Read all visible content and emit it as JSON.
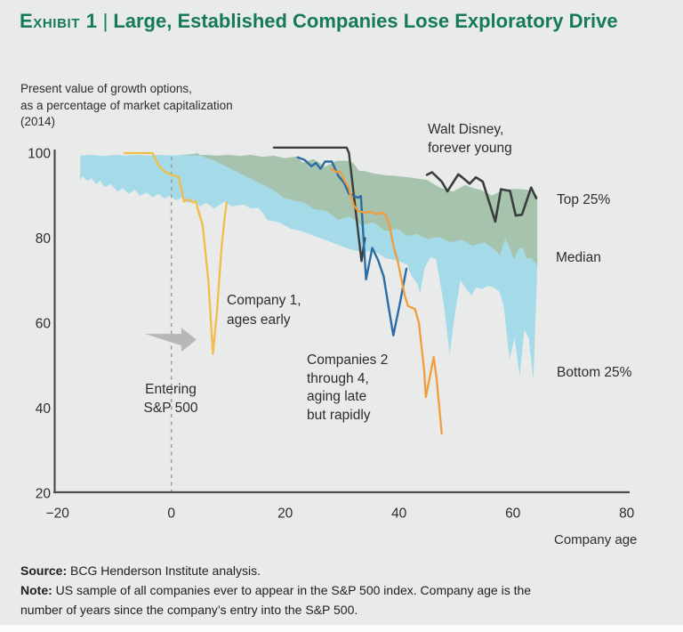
{
  "header": {
    "exhibit_label": "Exhibit 1",
    "separator": "|",
    "title": "Large, Established Companies Lose Exploratory Drive",
    "subtitle_lines": [
      "Present value of growth options,",
      "as a percentage of market capitalization",
      "(2014)"
    ]
  },
  "annotations": {
    "walt_disney_lines": [
      "Walt Disney,",
      "forever young"
    ],
    "company1_lines": [
      "Company 1,",
      "ages early"
    ],
    "companies24_lines": [
      "Companies 2",
      "through 4,",
      "aging late",
      "but rapidly"
    ],
    "entering_lines": [
      "Entering",
      "S&P 500"
    ]
  },
  "band_labels": {
    "top25": "Top 25%",
    "median": "Median",
    "bottom25": "Bottom 25%"
  },
  "axis": {
    "x_title": "Company age"
  },
  "footer": {
    "source_label": "Source:",
    "source_text": "BCG Henderson Institute analysis.",
    "note_label": "Note:",
    "note_lines": [
      "US sample of all companies ever to appear in the S&P 500 index. Company age is the",
      "number of years since the company’s entry into the S&P 500."
    ]
  },
  "colors": {
    "title_green": "#15795c",
    "background": "#e9eaea",
    "axis": "#4c4e4f",
    "dashed_entry_line": "#9aa0a2",
    "arrow_gray": "#b5b7b8",
    "text_dark": "#2b2d2e"
  },
  "chart_data": {
    "type": "area",
    "title": "Present value of growth options, as a percentage of market capitalization (2014)",
    "xlabel": "Company age",
    "ylabel": "",
    "x_range": [
      -20,
      80
    ],
    "y_range": [
      20,
      100
    ],
    "grid": false,
    "x_ticks": [
      "−20",
      "0",
      "20",
      "40",
      "60",
      "80"
    ],
    "x_tick_values": [
      -20,
      0,
      20,
      40,
      60,
      80
    ],
    "y_ticks": [
      "20",
      "40",
      "60",
      "80",
      "100"
    ],
    "y_tick_values": [
      20,
      40,
      60,
      80,
      100
    ],
    "entry_line_x": 0,
    "arrow": {
      "x_tail": -4.6,
      "x_tip": 4.4,
      "y": 56.1,
      "color": "#b5b7b8"
    },
    "bands": {
      "upper_fill": "#a6c3ae",
      "lower_fill": "#a5dbe8",
      "top25": [
        [
          -16,
          99.4
        ],
        [
          -14,
          99.6
        ],
        [
          -12,
          99.3
        ],
        [
          -10,
          99.6
        ],
        [
          -8,
          99.4
        ],
        [
          -6,
          99.6
        ],
        [
          -4,
          99.4
        ],
        [
          -2,
          99.6
        ],
        [
          0,
          99.4
        ],
        [
          2,
          99.6
        ],
        [
          4,
          99.4
        ],
        [
          6,
          99.6
        ],
        [
          8,
          99.4
        ],
        [
          10,
          99.6
        ],
        [
          12,
          99.3
        ],
        [
          14,
          99.6
        ],
        [
          16,
          99.1
        ],
        [
          18,
          99.4
        ],
        [
          20,
          98.8
        ],
        [
          22,
          99.2
        ],
        [
          23,
          97.8
        ],
        [
          25,
          98.6
        ],
        [
          27,
          96.8
        ],
        [
          29,
          98.2
        ],
        [
          31,
          98.2
        ],
        [
          32,
          97.6
        ],
        [
          33,
          95.8
        ],
        [
          34,
          95.8
        ],
        [
          35.5,
          95.2
        ],
        [
          37.4,
          94.8
        ],
        [
          39.7,
          94.6
        ],
        [
          42.3,
          94.2
        ],
        [
          44.9,
          93.7
        ],
        [
          46.9,
          92.1
        ],
        [
          48.5,
          91.2
        ],
        [
          49.6,
          91
        ],
        [
          51.6,
          92.5
        ],
        [
          53,
          91.8
        ],
        [
          54.3,
          91.4
        ],
        [
          56.3,
          90
        ],
        [
          58.4,
          91.4
        ],
        [
          60.5,
          91.6
        ],
        [
          62.6,
          91.4
        ],
        [
          63.7,
          90.6
        ],
        [
          64.3,
          90
        ]
      ],
      "median": [
        [
          -16,
          99.4
        ],
        [
          -14,
          99.6
        ],
        [
          -12,
          99.3
        ],
        [
          -10,
          99.6
        ],
        [
          -8,
          99.4
        ],
        [
          -6,
          99.6
        ],
        [
          -4,
          99.4
        ],
        [
          -2,
          99.6
        ],
        [
          0,
          99.4
        ],
        [
          2,
          99.6
        ],
        [
          4,
          99.8
        ],
        [
          4.5,
          100
        ],
        [
          6,
          98.9
        ],
        [
          7.4,
          98.3
        ],
        [
          8.7,
          97.4
        ],
        [
          10,
          96.6
        ],
        [
          11.3,
          95.7
        ],
        [
          12.6,
          94.8
        ],
        [
          14,
          93.9
        ],
        [
          15.2,
          93.1
        ],
        [
          16.6,
          92.2
        ],
        [
          18,
          91.2
        ],
        [
          19.9,
          89.4
        ],
        [
          21.5,
          88.8
        ],
        [
          23,
          88.5
        ],
        [
          25.1,
          86.8
        ],
        [
          27.2,
          86.4
        ],
        [
          29.3,
          84.3
        ],
        [
          31.3,
          85.1
        ],
        [
          33.5,
          83
        ],
        [
          35.5,
          83.7
        ],
        [
          37.6,
          81.6
        ],
        [
          39.7,
          82.2
        ],
        [
          41.4,
          80.5
        ],
        [
          43,
          81
        ],
        [
          45,
          79.8
        ],
        [
          47,
          80.3
        ],
        [
          49,
          79
        ],
        [
          51,
          79.6
        ],
        [
          53,
          78.2
        ],
        [
          55,
          79
        ],
        [
          57,
          77
        ],
        [
          57.7,
          76
        ],
        [
          58.7,
          79.9
        ],
        [
          59.5,
          77.5
        ],
        [
          60.2,
          74.9
        ],
        [
          61,
          77.5
        ],
        [
          61.7,
          77.8
        ],
        [
          62.4,
          75.2
        ],
        [
          63.3,
          75.3
        ],
        [
          64.3,
          73.5
        ]
      ],
      "bottom25": [
        [
          -16,
          93.5
        ],
        [
          -15.6,
          94.6
        ],
        [
          -14.8,
          93.5
        ],
        [
          -14,
          94.1
        ],
        [
          -13.2,
          92.7
        ],
        [
          -12.5,
          93.5
        ],
        [
          -11.7,
          92
        ],
        [
          -10.6,
          92.7
        ],
        [
          -9.5,
          91
        ],
        [
          -8.5,
          91.7
        ],
        [
          -7.5,
          90.4
        ],
        [
          -6.4,
          91.4
        ],
        [
          -5.5,
          90
        ],
        [
          -4.3,
          90.7
        ],
        [
          -3.3,
          89.6
        ],
        [
          -2.3,
          90.4
        ],
        [
          -1.2,
          89.3
        ],
        [
          -0.2,
          90
        ],
        [
          0.8,
          88.9
        ],
        [
          1.9,
          89.6
        ],
        [
          2.9,
          88.3
        ],
        [
          3.9,
          88.9
        ],
        [
          5,
          87.5
        ],
        [
          6.1,
          88.3
        ],
        [
          7.5,
          87
        ],
        [
          9.4,
          88.6
        ],
        [
          10.5,
          87.5
        ],
        [
          12.6,
          87.9
        ],
        [
          14,
          87
        ],
        [
          15.2,
          87.2
        ],
        [
          16,
          86
        ],
        [
          16.8,
          84.3
        ],
        [
          18.9,
          83.7
        ],
        [
          21,
          82.2
        ],
        [
          23,
          81.6
        ],
        [
          25.1,
          80.5
        ],
        [
          27.2,
          79.5
        ],
        [
          29.3,
          78.4
        ],
        [
          31.3,
          77.4
        ],
        [
          33.5,
          76.7
        ],
        [
          35.5,
          77
        ],
        [
          37.6,
          75.3
        ],
        [
          39.7,
          74.7
        ],
        [
          41.4,
          73.8
        ],
        [
          42.2,
          71.1
        ],
        [
          43.3,
          69.1
        ],
        [
          43.7,
          67
        ],
        [
          44.5,
          73
        ],
        [
          45.5,
          75.5
        ],
        [
          46.5,
          75
        ],
        [
          47.8,
          65
        ],
        [
          48.9,
          52.7
        ],
        [
          49.8,
          62
        ],
        [
          50.8,
          70.1
        ],
        [
          51.8,
          68
        ],
        [
          52.7,
          66.6
        ],
        [
          53.6,
          68.4
        ],
        [
          54.6,
          68
        ],
        [
          55.6,
          68.8
        ],
        [
          56.6,
          68.4
        ],
        [
          57.6,
          67.5
        ],
        [
          58.4,
          64
        ],
        [
          59.4,
          51.5
        ],
        [
          60.3,
          56.5
        ],
        [
          61.2,
          47.5
        ],
        [
          62,
          58.5
        ],
        [
          62.8,
          56.5
        ],
        [
          63.6,
          46.5
        ]
      ]
    },
    "lines": [
      {
        "id": "company-4",
        "name": "Company 4 (ages late but rapidly)",
        "color": "#3b3c3c",
        "width": 2.4,
        "points": [
          [
            18,
            101.3
          ],
          [
            30.8,
            101.3
          ],
          [
            31.2,
            100
          ],
          [
            33.4,
            74.6
          ],
          [
            34,
            80
          ]
        ]
      },
      {
        "id": "company-2",
        "name": "Company 2 (ages late but rapidly)",
        "color": "#2a6da6",
        "width": 2.4,
        "points": [
          [
            22.2,
            99
          ],
          [
            23.4,
            98.4
          ],
          [
            24.6,
            96.9
          ],
          [
            25.4,
            97.7
          ],
          [
            26.2,
            96.3
          ],
          [
            27,
            98
          ],
          [
            28.2,
            98
          ],
          [
            29.3,
            94.7
          ],
          [
            30.3,
            93.1
          ],
          [
            31.2,
            90.4
          ],
          [
            32.8,
            89.5
          ],
          [
            33.3,
            89.9
          ],
          [
            34.2,
            70.3
          ],
          [
            35.3,
            77.7
          ],
          [
            36.3,
            74.9
          ],
          [
            37.3,
            71
          ],
          [
            38.2,
            63.5
          ],
          [
            39,
            57.1
          ],
          [
            40.2,
            65
          ],
          [
            41.3,
            72.8
          ]
        ]
      },
      {
        "id": "company-3",
        "name": "Company 3 (ages late but rapidly)",
        "color": "#f09d3d",
        "width": 2.3,
        "points": [
          [
            28,
            96.4
          ],
          [
            29,
            95.5
          ],
          [
            29.6,
            95.7
          ],
          [
            30.3,
            93.8
          ],
          [
            31.1,
            92.1
          ],
          [
            31.6,
            89.7
          ],
          [
            32.1,
            87.6
          ],
          [
            32.9,
            86.3
          ],
          [
            34,
            86
          ],
          [
            35,
            86.2
          ],
          [
            36,
            85.7
          ],
          [
            37.1,
            86
          ],
          [
            37.7,
            85.3
          ],
          [
            38.3,
            83.1
          ],
          [
            39.1,
            77.7
          ],
          [
            39.7,
            75
          ],
          [
            40.4,
            70.4
          ],
          [
            41,
            66.5
          ],
          [
            41.6,
            64
          ],
          [
            42.8,
            63.3
          ],
          [
            43.5,
            60
          ],
          [
            43.9,
            55
          ],
          [
            44.4,
            49
          ],
          [
            44.7,
            42.6
          ],
          [
            46.1,
            52
          ],
          [
            46.6,
            47
          ],
          [
            47.5,
            34
          ]
        ]
      },
      {
        "id": "company-1",
        "name": "Company 1 (ages early)",
        "color": "#f0bd47",
        "width": 2.3,
        "points": [
          [
            -8.2,
            100
          ],
          [
            -3.3,
            100
          ],
          [
            -2.3,
            97.2
          ],
          [
            -1.2,
            95.7
          ],
          [
            -0.2,
            95
          ],
          [
            1.3,
            94.4
          ],
          [
            2.2,
            88.6
          ],
          [
            3,
            89.1
          ],
          [
            3.8,
            88.4
          ],
          [
            4.3,
            88.7
          ],
          [
            4.7,
            86.6
          ],
          [
            5.5,
            83
          ],
          [
            6.5,
            70
          ],
          [
            7.3,
            52.8
          ],
          [
            8,
            62.5
          ],
          [
            8.8,
            77.5
          ],
          [
            9.3,
            84
          ],
          [
            9.7,
            88.4
          ]
        ]
      },
      {
        "id": "walt-disney",
        "name": "Walt Disney (forever young)",
        "color": "#3b3c3c",
        "width": 2.6,
        "points": [
          [
            44.9,
            94.9
          ],
          [
            45.8,
            95.5
          ],
          [
            47.5,
            93.3
          ],
          [
            48.5,
            91
          ],
          [
            50.4,
            95
          ],
          [
            51.1,
            94.3
          ],
          [
            52.4,
            92.8
          ],
          [
            53.5,
            94.3
          ],
          [
            54.7,
            93.3
          ],
          [
            56.9,
            83.9
          ],
          [
            57.9,
            91.5
          ],
          [
            59.5,
            91.1
          ],
          [
            60.5,
            85.3
          ],
          [
            61.6,
            85.5
          ],
          [
            63.2,
            91.9
          ],
          [
            64.1,
            89.4
          ]
        ]
      }
    ]
  }
}
